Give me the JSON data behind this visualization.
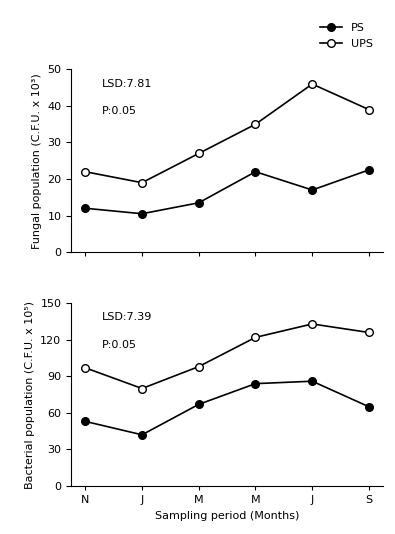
{
  "x_labels": [
    "N",
    "J",
    "M",
    "M",
    "J",
    "S"
  ],
  "fungal_ps": [
    12,
    10.5,
    13.5,
    22,
    17,
    22.5
  ],
  "fungal_ups": [
    22,
    19,
    27,
    35,
    46,
    39
  ],
  "fungal_ylim": [
    0,
    50
  ],
  "fungal_yticks": [
    0,
    10,
    20,
    30,
    40,
    50
  ],
  "fungal_ylabel": "Fungal population (C.F.U. x 10³)",
  "fungal_lsd": "LSD:7.81",
  "fungal_p": "P:0.05",
  "bacterial_ps": [
    53,
    42,
    67,
    84,
    86,
    65
  ],
  "bacterial_ups": [
    97,
    80,
    98,
    122,
    133,
    126
  ],
  "bacterial_ylim": [
    0,
    150
  ],
  "bacterial_yticks": [
    0,
    30,
    60,
    90,
    120,
    150
  ],
  "bacterial_ylabel": "Bacterial population (C.F.U. x 10⁵)",
  "bacterial_lsd": "LSD:7.39",
  "bacterial_p": "P:0.05",
  "xlabel": "Sampling period (Months)",
  "legend_ps": "PS",
  "legend_ups": "UPS",
  "color_ps": "#000000",
  "color_ups": "#000000",
  "marker_ps": "o",
  "marker_ups": "o",
  "markerfacecolor_ps": "#000000",
  "markerfacecolor_ups": "#ffffff",
  "linewidth": 1.2,
  "markersize": 5.5,
  "fontsize_label": 8,
  "fontsize_tick": 8,
  "fontsize_legend": 8,
  "fontsize_annotation": 8
}
